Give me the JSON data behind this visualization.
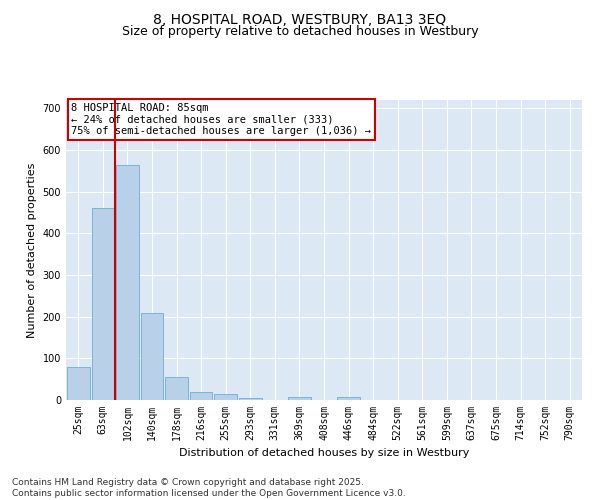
{
  "title1": "8, HOSPITAL ROAD, WESTBURY, BA13 3EQ",
  "title2": "Size of property relative to detached houses in Westbury",
  "xlabel": "Distribution of detached houses by size in Westbury",
  "ylabel": "Number of detached properties",
  "categories": [
    "25sqm",
    "63sqm",
    "102sqm",
    "140sqm",
    "178sqm",
    "216sqm",
    "255sqm",
    "293sqm",
    "331sqm",
    "369sqm",
    "408sqm",
    "446sqm",
    "484sqm",
    "522sqm",
    "561sqm",
    "599sqm",
    "637sqm",
    "675sqm",
    "714sqm",
    "752sqm",
    "790sqm"
  ],
  "values": [
    80,
    462,
    565,
    210,
    55,
    20,
    15,
    5,
    0,
    8,
    0,
    8,
    0,
    0,
    0,
    0,
    0,
    0,
    0,
    0,
    0
  ],
  "bar_color": "#b8d0e8",
  "bar_edge_color": "#6baed6",
  "vline_color": "#cc0000",
  "vline_x": 1.5,
  "annotation_title": "8 HOSPITAL ROAD: 85sqm",
  "annotation_line1": "← 24% of detached houses are smaller (333)",
  "annotation_line2": "75% of semi-detached houses are larger (1,036) →",
  "annotation_box_color": "#ffffff",
  "annotation_box_edge": "#cc0000",
  "ylim": [
    0,
    720
  ],
  "yticks": [
    0,
    100,
    200,
    300,
    400,
    500,
    600,
    700
  ],
  "footnote1": "Contains HM Land Registry data © Crown copyright and database right 2025.",
  "footnote2": "Contains public sector information licensed under the Open Government Licence v3.0.",
  "bg_color": "#dce9f5",
  "fig_bg_color": "#ffffff",
  "title1_fontsize": 10,
  "title2_fontsize": 9,
  "ylabel_fontsize": 8,
  "xlabel_fontsize": 8,
  "tick_fontsize": 7,
  "annot_fontsize": 7.5,
  "footnote_fontsize": 6.5
}
